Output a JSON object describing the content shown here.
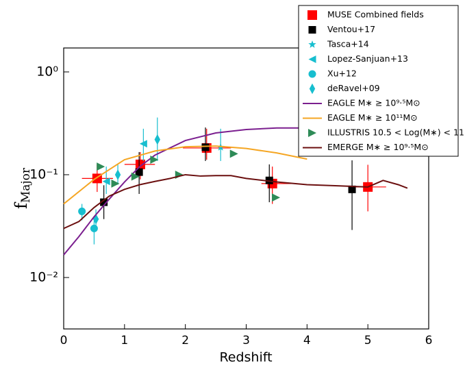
{
  "chart_data": {
    "type": "scatter",
    "xlabel": "Redshift",
    "ylabel": {
      "main": "f",
      "sub": "Major"
    },
    "xlim": [
      0,
      6
    ],
    "ylim": [
      0.00316,
      1.71
    ],
    "log_y": true,
    "xticks": [
      0,
      1,
      2,
      3,
      4,
      5,
      6
    ],
    "yticks": [
      {
        "value": 0.01,
        "label": "10⁻²"
      },
      {
        "value": 0.1,
        "label": "10⁻¹"
      },
      {
        "value": 1,
        "label": "10⁰"
      }
    ],
    "legend": "upper right",
    "series": [
      {
        "name": "MUSE Combined fields",
        "color": "#ff0000",
        "marker": "square",
        "size": 14,
        "x": [
          0.55,
          1.26,
          2.35,
          3.43,
          5.0
        ],
        "values": [
          0.092,
          0.126,
          0.182,
          0.082,
          0.076
        ],
        "xlo": [
          0.3,
          1.0,
          1.96,
          3.25,
          4.7
        ],
        "xhi": [
          0.81,
          1.5,
          2.75,
          3.75,
          5.3
        ],
        "ylo": [
          0.068,
          0.09,
          0.14,
          0.052,
          0.044
        ],
        "yhi": [
          0.126,
          0.166,
          0.28,
          0.12,
          0.125
        ]
      },
      {
        "name": "Ventou+17",
        "color": "#000000",
        "marker": "square",
        "size": 11,
        "x": [
          0.66,
          1.24,
          2.33,
          3.38,
          4.74
        ],
        "values": [
          0.054,
          0.106,
          0.185,
          0.088,
          0.072
        ],
        "ylo": [
          0.037,
          0.065,
          0.136,
          0.054,
          0.029
        ],
        "yhi": [
          0.079,
          0.166,
          0.288,
          0.126,
          0.138
        ]
      },
      {
        "name": "Tasca+14",
        "color": "#17becf",
        "marker": "star",
        "size": 12,
        "x": [
          2.58
        ],
        "values": [
          0.185
        ],
        "ylo": [
          0.136
        ],
        "yhi": [
          0.28
        ]
      },
      {
        "name": "Lopez-Sanjuan+13",
        "color": "#17becf",
        "marker": "left",
        "size": 11,
        "x": [
          0.7,
          1.31
        ],
        "values": [
          0.086,
          0.2
        ],
        "ylo": [
          0.065,
          0.136
        ],
        "yhi": [
          0.12,
          0.28
        ]
      },
      {
        "name": "Xu+12",
        "color": "#17becf",
        "marker": "circle",
        "size": 11,
        "x": [
          0.3,
          0.5
        ],
        "values": [
          0.044,
          0.03
        ],
        "ylo": [
          0.036,
          0.021
        ],
        "yhi": [
          0.052,
          0.038
        ]
      },
      {
        "name": "deRavel+09",
        "color": "#17becf",
        "marker": "diamond",
        "size": 12,
        "x": [
          0.53,
          0.89,
          1.54
        ],
        "values": [
          0.037,
          0.1,
          0.22
        ],
        "ylo": [
          0.03,
          0.08,
          0.136
        ],
        "yhi": [
          0.046,
          0.125,
          0.36
        ]
      },
      {
        "name": "EAGLE  M∗ ≥ 10⁹·⁵M⊙",
        "color": "#7b1f8f",
        "kind": "line",
        "x": [
          0,
          0.25,
          0.5,
          0.75,
          1,
          1.25,
          1.5,
          2,
          2.5,
          3,
          3.5,
          4
        ],
        "values": [
          0.0166,
          0.025,
          0.039,
          0.058,
          0.085,
          0.12,
          0.155,
          0.215,
          0.255,
          0.275,
          0.285,
          0.285
        ]
      },
      {
        "name": "EAGLE  M∗ ≥ 10¹¹M⊙",
        "color": "#f5a623",
        "kind": "line",
        "x": [
          0,
          0.5,
          1,
          1.5,
          2,
          2.5,
          3,
          3.5,
          4
        ],
        "values": [
          0.052,
          0.09,
          0.14,
          0.17,
          0.187,
          0.19,
          0.18,
          0.163,
          0.142
        ]
      },
      {
        "name": "ILLUSTRIS 10.5 < Log(M∗) < 11",
        "color": "#2e8b57",
        "marker": "right",
        "size": 12,
        "x": [
          0.61,
          0.85,
          1.18,
          1.49,
          1.9,
          2.8,
          3.49
        ],
        "values": [
          0.12,
          0.082,
          0.096,
          0.14,
          0.1,
          0.16,
          0.06
        ]
      },
      {
        "name": "EMERGE M∗ ≥ 10⁹·⁵M⊙",
        "color": "#6b0f0f",
        "kind": "line",
        "x": [
          0,
          0.25,
          0.5,
          0.75,
          1,
          1.25,
          1.5,
          1.75,
          2,
          2.25,
          2.5,
          2.75,
          3,
          3.5,
          4,
          4.5,
          5,
          5.25,
          5.5,
          5.65
        ],
        "values": [
          0.03,
          0.035,
          0.048,
          0.062,
          0.072,
          0.08,
          0.086,
          0.092,
          0.1,
          0.097,
          0.098,
          0.098,
          0.092,
          0.085,
          0.08,
          0.078,
          0.076,
          0.088,
          0.08,
          0.074
        ]
      }
    ]
  }
}
